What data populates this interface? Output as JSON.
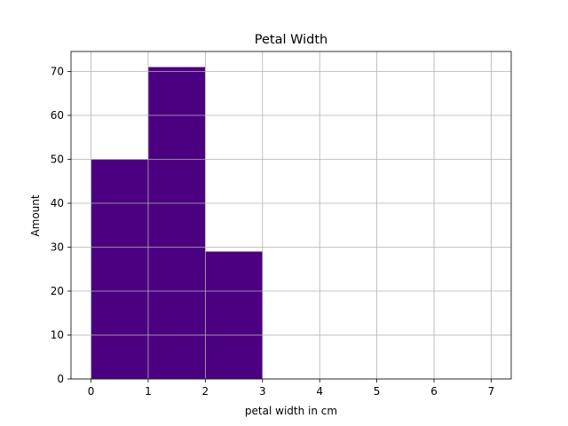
{
  "chart_data": {
    "type": "bar",
    "title": "Petal Width",
    "xlabel": "petal width in cm",
    "ylabel": "Amount",
    "bins": [
      {
        "start": 0,
        "end": 1,
        "value": 50
      },
      {
        "start": 1,
        "end": 2,
        "value": 71
      },
      {
        "start": 2,
        "end": 3,
        "value": 29
      }
    ],
    "xlim": [
      -0.35,
      7.35
    ],
    "ylim": [
      0,
      74.55
    ],
    "xticks": [
      0,
      1,
      2,
      3,
      4,
      5,
      6,
      7
    ],
    "yticks": [
      0,
      10,
      20,
      30,
      40,
      50,
      60,
      70
    ],
    "grid": true,
    "colors": {
      "bar": "#4b0082",
      "bar_edge": "#b0b0b0",
      "grid": "#b0b0b0",
      "axis": "#000000"
    }
  }
}
